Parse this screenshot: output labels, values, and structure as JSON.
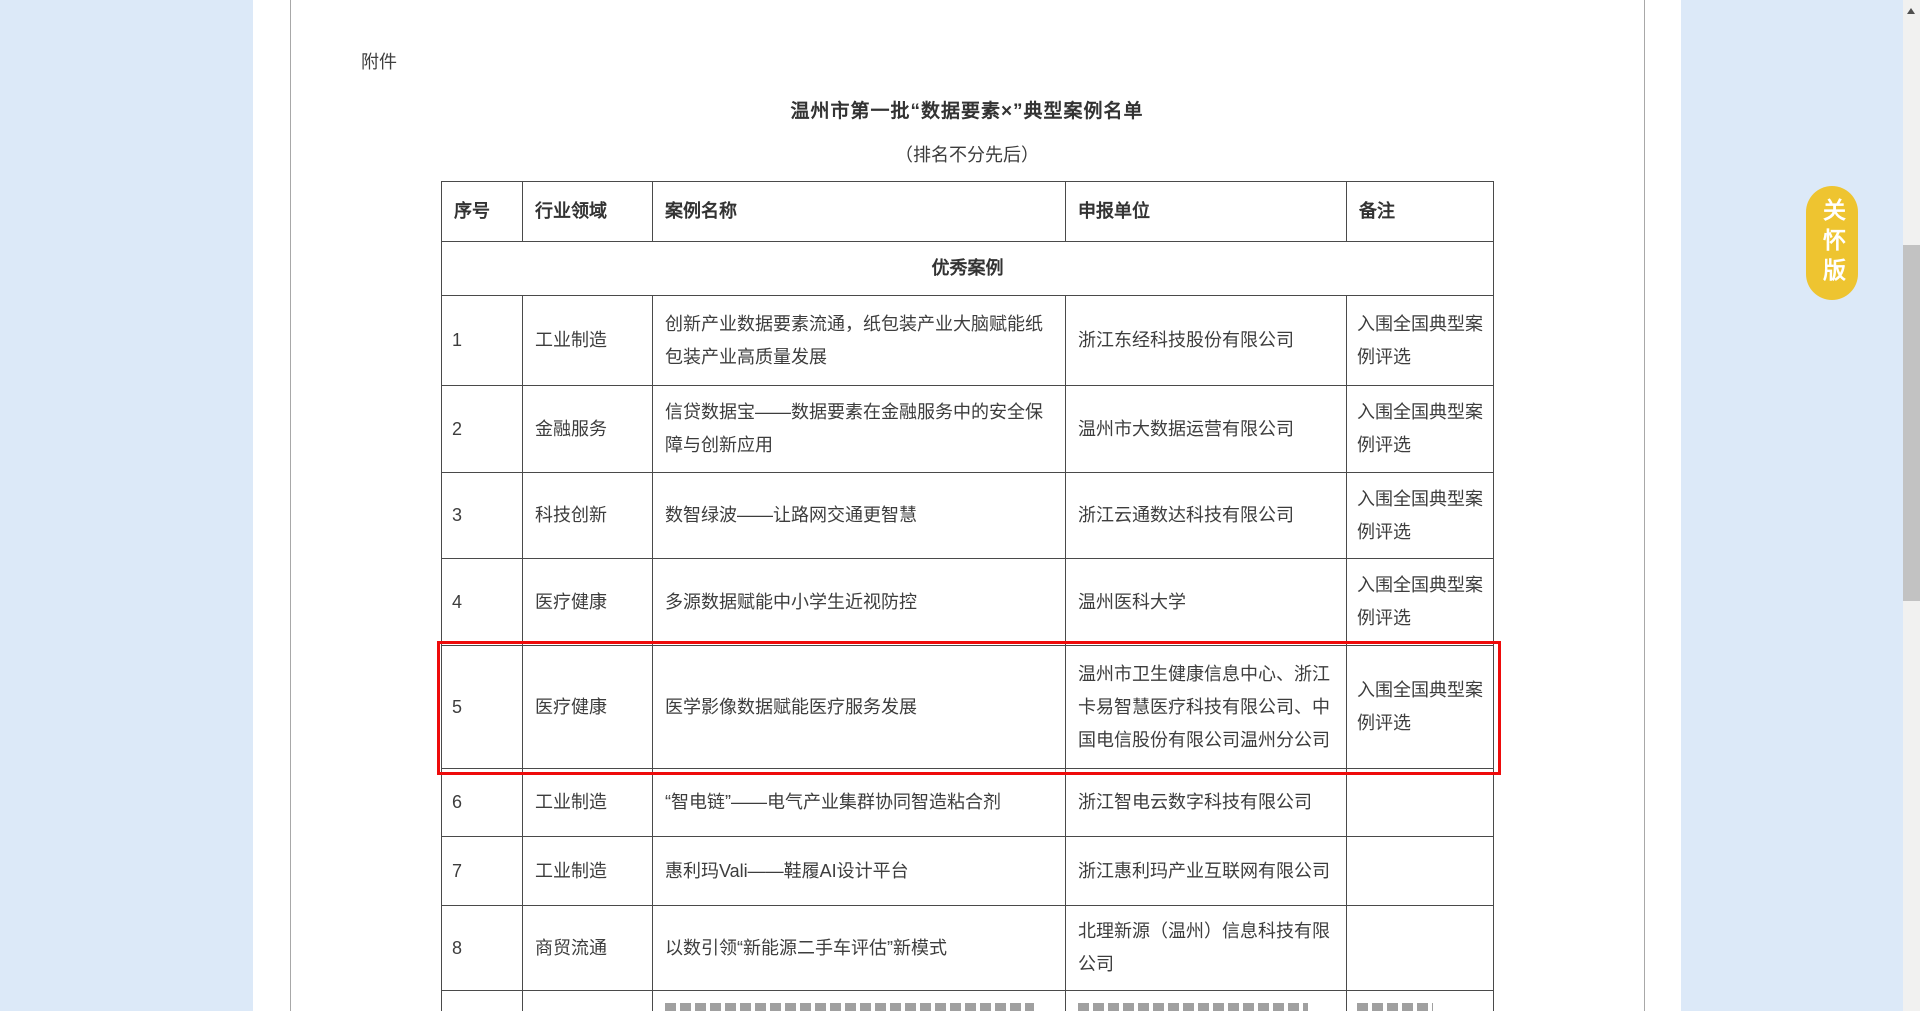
{
  "page": {
    "attachment_label": "附件",
    "title": "温州市第一批“数据要素×”典型案例名单",
    "subtitle": "（排名不分先后）"
  },
  "care_button": {
    "label": "关怀版"
  },
  "table": {
    "headers": [
      "序号",
      "行业领域",
      "案例名称",
      "申报单位",
      "备注"
    ],
    "section_label": "优秀案例",
    "rows": [
      {
        "no": "1",
        "industry": "工业制造",
        "case": "创新产业数据要素流通，纸包装产业大脑赋能纸包装产业高质量发展",
        "unit": "浙江东经科技股份有限公司",
        "note": "入围全国典型案例评选",
        "highlighted": false
      },
      {
        "no": "2",
        "industry": "金融服务",
        "case": "信贷数据宝——数据要素在金融服务中的安全保障与创新应用",
        "unit": "温州市大数据运营有限公司",
        "note": "入围全国典型案例评选",
        "highlighted": false
      },
      {
        "no": "3",
        "industry": "科技创新",
        "case": "数智绿波——让路网交通更智慧",
        "unit": "浙江云通数达科技有限公司",
        "note": "入围全国典型案例评选",
        "highlighted": false
      },
      {
        "no": "4",
        "industry": "医疗健康",
        "case": "多源数据赋能中小学生近视防控",
        "unit": "温州医科大学",
        "note": "入围全国典型案例评选",
        "highlighted": false
      },
      {
        "no": "5",
        "industry": "医疗健康",
        "case": "医学影像数据赋能医疗服务发展",
        "unit": "温州市卫生健康信息中心、浙江卡易智慧医疗科技有限公司、中国电信股份有限公司温州分公司",
        "note": "入围全国典型案例评选",
        "highlighted": true
      },
      {
        "no": "6",
        "industry": "工业制造",
        "case": "“智电链”——电气产业集群协同智造粘合剂",
        "unit": "浙江智电云数字科技有限公司",
        "note": "",
        "highlighted": false
      },
      {
        "no": "7",
        "industry": "工业制造",
        "case": "惠利玛Vali——鞋履AI设计平台",
        "unit": "浙江惠利玛产业互联网有限公司",
        "note": "",
        "highlighted": false
      },
      {
        "no": "8",
        "industry": "商贸流通",
        "case": "以数引领“新能源二手车评估”新模式",
        "unit": "北理新源（温州）信息科技有限公司",
        "note": "",
        "highlighted": false
      }
    ]
  },
  "colors": {
    "highlight_border": "#ee0b0b",
    "care_button_bg": "#eec430",
    "page_background": "#dce9f8",
    "scrollbar_thumb": "#c2c2c2"
  }
}
